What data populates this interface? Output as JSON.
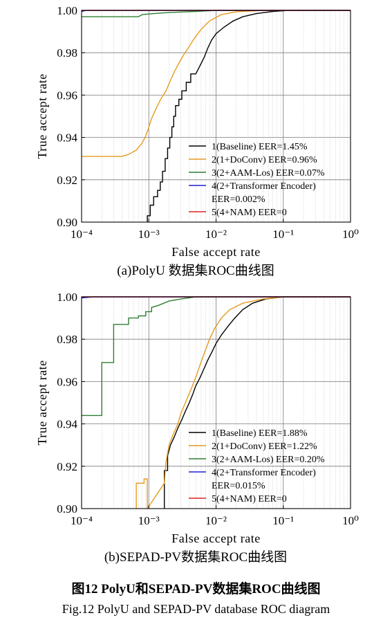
{
  "chart_data": [
    {
      "type": "line",
      "caption": "(a)PolyU 数据集ROC曲线图",
      "xlabel": "False accept rate",
      "ylabel": "True accept rate",
      "xscale": "log",
      "xlim": [
        0.0001,
        1
      ],
      "ylim": [
        0.9,
        1.0
      ],
      "x_ticks": [
        "10⁻⁴",
        "10⁻³",
        "10⁻²",
        "10⁻¹",
        "10⁰"
      ],
      "y_ticks": [
        "0.90",
        "0.92",
        "0.94",
        "0.96",
        "0.98",
        "1.00"
      ],
      "grid": "minor-and-major",
      "legend_position": "bottom-right",
      "series": [
        {
          "name": "1(Baseline) EER=1.45%",
          "color": "#000000",
          "points": [
            [
              0.00095,
              0.9
            ],
            [
              0.00095,
              0.903
            ],
            [
              0.00105,
              0.903
            ],
            [
              0.00105,
              0.908
            ],
            [
              0.00118,
              0.908
            ],
            [
              0.00118,
              0.912
            ],
            [
              0.00135,
              0.912
            ],
            [
              0.00135,
              0.915
            ],
            [
              0.00148,
              0.915
            ],
            [
              0.00148,
              0.919
            ],
            [
              0.0016,
              0.919
            ],
            [
              0.0016,
              0.924
            ],
            [
              0.00175,
              0.924
            ],
            [
              0.00175,
              0.93
            ],
            [
              0.0019,
              0.93
            ],
            [
              0.0019,
              0.935
            ],
            [
              0.00205,
              0.935
            ],
            [
              0.00205,
              0.94
            ],
            [
              0.0022,
              0.94
            ],
            [
              0.0022,
              0.945
            ],
            [
              0.00235,
              0.945
            ],
            [
              0.00235,
              0.95
            ],
            [
              0.0025,
              0.95
            ],
            [
              0.0025,
              0.955
            ],
            [
              0.0028,
              0.955
            ],
            [
              0.0028,
              0.958
            ],
            [
              0.0031,
              0.958
            ],
            [
              0.0031,
              0.962
            ],
            [
              0.0036,
              0.962
            ],
            [
              0.0036,
              0.966
            ],
            [
              0.0042,
              0.966
            ],
            [
              0.0042,
              0.97
            ],
            [
              0.005,
              0.97
            ],
            [
              0.0058,
              0.974
            ],
            [
              0.0067,
              0.978
            ],
            [
              0.0075,
              0.982
            ],
            [
              0.0086,
              0.986
            ],
            [
              0.01,
              0.989
            ],
            [
              0.013,
              0.992
            ],
            [
              0.018,
              0.995
            ],
            [
              0.025,
              0.997
            ],
            [
              0.04,
              0.9985
            ],
            [
              0.07,
              0.9995
            ],
            [
              0.12,
              1.0
            ],
            [
              1.0,
              1.0
            ]
          ]
        },
        {
          "name": "2(1+DoConv) EER=0.96%",
          "color": "#e69a1e",
          "points": [
            [
              0.0001,
              0.931
            ],
            [
              0.0004,
              0.931
            ],
            [
              0.0005,
              0.932
            ],
            [
              0.00065,
              0.934
            ],
            [
              0.00078,
              0.937
            ],
            [
              0.00088,
              0.94
            ],
            [
              0.00098,
              0.944
            ],
            [
              0.0011,
              0.949
            ],
            [
              0.0013,
              0.954
            ],
            [
              0.0015,
              0.958
            ],
            [
              0.0018,
              0.962
            ],
            [
              0.0021,
              0.967
            ],
            [
              0.0024,
              0.971
            ],
            [
              0.0028,
              0.975
            ],
            [
              0.0033,
              0.979
            ],
            [
              0.004,
              0.983
            ],
            [
              0.0048,
              0.987
            ],
            [
              0.006,
              0.991
            ],
            [
              0.008,
              0.995
            ],
            [
              0.012,
              0.998
            ],
            [
              0.02,
              0.9993
            ],
            [
              0.05,
              1.0
            ],
            [
              1.0,
              1.0
            ]
          ]
        },
        {
          "name": "3(2+AAM-Los) EER=0.07%",
          "color": "#2e7d32",
          "points": [
            [
              0.0001,
              0.997
            ],
            [
              0.0007,
              0.997
            ],
            [
              0.0008,
              0.998
            ],
            [
              0.0012,
              0.9985
            ],
            [
              0.002,
              0.999
            ],
            [
              0.005,
              0.9995
            ],
            [
              0.01,
              1.0
            ],
            [
              1.0,
              1.0
            ]
          ]
        },
        {
          "name": "4(2+Transformer Encoder) EER=0.002%",
          "color": "#1f1fd6",
          "points": [
            [
              0.0001,
              0.9995
            ],
            [
              0.00012,
              1.0
            ],
            [
              1.0,
              1.0
            ]
          ]
        },
        {
          "name": "5(4+NAM) EER=0",
          "color": "#e02020",
          "points": [
            [
              0.0001,
              1.0
            ],
            [
              1.0,
              1.0
            ]
          ]
        }
      ]
    },
    {
      "type": "line",
      "caption": "(b)SEPAD-PV数据集ROC曲线图",
      "xlabel": "False accept rate",
      "ylabel": "True accept rate",
      "xscale": "log",
      "xlim": [
        0.0001,
        1
      ],
      "ylim": [
        0.9,
        1.0
      ],
      "x_ticks": [
        "10⁻⁴",
        "10⁻³",
        "10⁻²",
        "10⁻¹",
        "10⁰"
      ],
      "y_ticks": [
        "0.90",
        "0.92",
        "0.94",
        "0.96",
        "0.98",
        "1.00"
      ],
      "grid": "minor-and-major",
      "legend_position": "bottom-right",
      "series": [
        {
          "name": "1(Baseline) EER=1.88%",
          "color": "#000000",
          "points": [
            [
              0.0017,
              0.9
            ],
            [
              0.0017,
              0.918
            ],
            [
              0.0019,
              0.918
            ],
            [
              0.0019,
              0.925
            ],
            [
              0.0021,
              0.93
            ],
            [
              0.0024,
              0.934
            ],
            [
              0.0027,
              0.938
            ],
            [
              0.0031,
              0.942
            ],
            [
              0.0035,
              0.946
            ],
            [
              0.004,
              0.95
            ],
            [
              0.0045,
              0.954
            ],
            [
              0.005,
              0.958
            ],
            [
              0.0058,
              0.962
            ],
            [
              0.0066,
              0.966
            ],
            [
              0.0075,
              0.97
            ],
            [
              0.0087,
              0.974
            ],
            [
              0.01,
              0.978
            ],
            [
              0.012,
              0.982
            ],
            [
              0.015,
              0.986
            ],
            [
              0.019,
              0.99
            ],
            [
              0.025,
              0.994
            ],
            [
              0.035,
              0.997
            ],
            [
              0.055,
              0.999
            ],
            [
              0.1,
              1.0
            ],
            [
              1.0,
              1.0
            ]
          ]
        },
        {
          "name": "2(1+DoConv) EER=1.22%",
          "color": "#e69a1e",
          "points": [
            [
              0.00065,
              0.9
            ],
            [
              0.00065,
              0.912
            ],
            [
              0.00085,
              0.912
            ],
            [
              0.00085,
              0.914
            ],
            [
              0.00095,
              0.914
            ],
            [
              0.00095,
              0.9
            ],
            [
              0.0017,
              0.912
            ],
            [
              0.0018,
              0.922
            ],
            [
              0.002,
              0.93
            ],
            [
              0.0023,
              0.935
            ],
            [
              0.0027,
              0.94
            ],
            [
              0.003,
              0.945
            ],
            [
              0.0035,
              0.95
            ],
            [
              0.0042,
              0.956
            ],
            [
              0.005,
              0.962
            ],
            [
              0.0058,
              0.968
            ],
            [
              0.0068,
              0.974
            ],
            [
              0.008,
              0.98
            ],
            [
              0.0095,
              0.985
            ],
            [
              0.012,
              0.99
            ],
            [
              0.016,
              0.994
            ],
            [
              0.025,
              0.997
            ],
            [
              0.05,
              0.999
            ],
            [
              0.1,
              1.0
            ],
            [
              1.0,
              1.0
            ]
          ]
        },
        {
          "name": "3(2+AAM-Los) EER=0.20%",
          "color": "#2e7d32",
          "points": [
            [
              0.0001,
              0.944
            ],
            [
              0.0002,
              0.944
            ],
            [
              0.0002,
              0.969
            ],
            [
              0.0003,
              0.969
            ],
            [
              0.0003,
              0.987
            ],
            [
              0.0005,
              0.987
            ],
            [
              0.0005,
              0.99
            ],
            [
              0.0007,
              0.99
            ],
            [
              0.0007,
              0.991
            ],
            [
              0.0009,
              0.991
            ],
            [
              0.0009,
              0.993
            ],
            [
              0.0011,
              0.993
            ],
            [
              0.0011,
              0.995
            ],
            [
              0.0014,
              0.996
            ],
            [
              0.002,
              0.998
            ],
            [
              0.003,
              0.999
            ],
            [
              0.005,
              1.0
            ],
            [
              1.0,
              1.0
            ]
          ]
        },
        {
          "name": "4(2+Transformer Encoder) EER=0.015%",
          "color": "#1f1fd6",
          "points": [
            [
              0.0001,
              0.9995
            ],
            [
              0.00015,
              1.0
            ],
            [
              1.0,
              1.0
            ]
          ]
        },
        {
          "name": "5(4+NAM) EER=0",
          "color": "#e02020",
          "points": [
            [
              0.0001,
              1.0
            ],
            [
              1.0,
              1.0
            ]
          ]
        }
      ]
    }
  ],
  "figure_caption_cn": "图12 PolyU和SEPAD-PV数据集ROC曲线图",
  "figure_caption_en": "Fig.12 PolyU and SEPAD-PV database ROC diagram"
}
